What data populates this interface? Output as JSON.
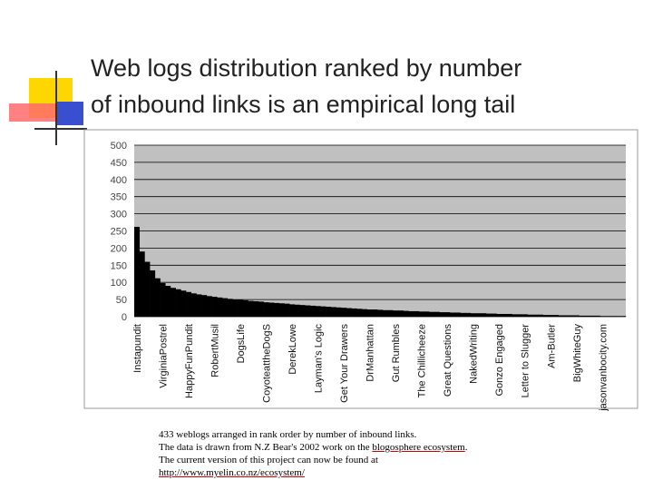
{
  "slide": {
    "title_lines": [
      "Web logs distribution ranked by number",
      "of inbound links is an empirical long tail"
    ]
  },
  "caption": {
    "line1": "433 weblogs arranged in rank order by number of inbound links.",
    "line2": "The data is drawn from N.Z Bear's 2002 work on the",
    "link1": "blogosphere ecosystem",
    "line2_end": ".",
    "line3": "The current version of this project can now be found at",
    "link2": "http://www.myelin.co.nz/ecosystem/"
  },
  "chart_data": {
    "type": "bar",
    "color": "#000000",
    "background": "#c0c0c0",
    "grid": true,
    "ylim": [
      0,
      500
    ],
    "yticks": [
      0,
      50,
      100,
      150,
      200,
      250,
      300,
      350,
      400,
      450,
      500
    ],
    "categories": [
      "Instapundit",
      null,
      null,
      null,
      null,
      "VirginiaPostrel",
      null,
      null,
      null,
      null,
      "HappyFunPundit",
      null,
      null,
      null,
      null,
      "RobertMusil",
      null,
      null,
      null,
      null,
      "DogsLife",
      null,
      null,
      null,
      null,
      "CoyoteattheDogS",
      null,
      null,
      null,
      null,
      "DerekLowe",
      null,
      null,
      null,
      null,
      "Layman's Logic",
      null,
      null,
      null,
      null,
      "Get Your Drawers",
      null,
      null,
      null,
      null,
      "DrManhattan",
      null,
      null,
      null,
      null,
      "Gut Rumbles",
      null,
      null,
      null,
      null,
      "The Chillicheeze",
      null,
      null,
      null,
      null,
      "Great Questions",
      null,
      null,
      null,
      null,
      "NakedWriting",
      null,
      null,
      null,
      null,
      "Gonzo Engaged",
      null,
      null,
      null,
      null,
      "Letter to Slugger",
      null,
      null,
      null,
      null,
      "Am-Butler",
      null,
      null,
      null,
      null,
      "BigWhiteGuy",
      null,
      null,
      null,
      null,
      "jasonvanbocity.com",
      null,
      null,
      null,
      null
    ],
    "values": [
      262,
      190,
      160,
      135,
      112,
      98,
      90,
      84,
      80,
      76,
      72,
      68,
      65,
      63,
      60,
      58,
      56,
      54,
      52,
      50,
      49,
      48,
      46,
      45,
      44,
      42,
      41,
      40,
      39,
      38,
      36,
      35,
      34,
      33,
      32,
      31,
      30,
      29,
      28,
      27,
      26,
      25,
      24,
      23,
      22,
      21,
      21,
      20,
      19,
      19,
      18,
      18,
      17,
      16,
      16,
      15,
      15,
      14,
      14,
      13,
      13,
      12,
      12,
      11,
      11,
      10,
      10,
      10,
      9,
      9,
      8,
      8,
      8,
      7,
      7,
      7,
      6,
      6,
      6,
      5,
      5,
      5,
      4,
      4,
      4,
      4,
      3,
      3,
      3,
      3,
      2,
      2,
      2,
      2,
      2
    ]
  }
}
